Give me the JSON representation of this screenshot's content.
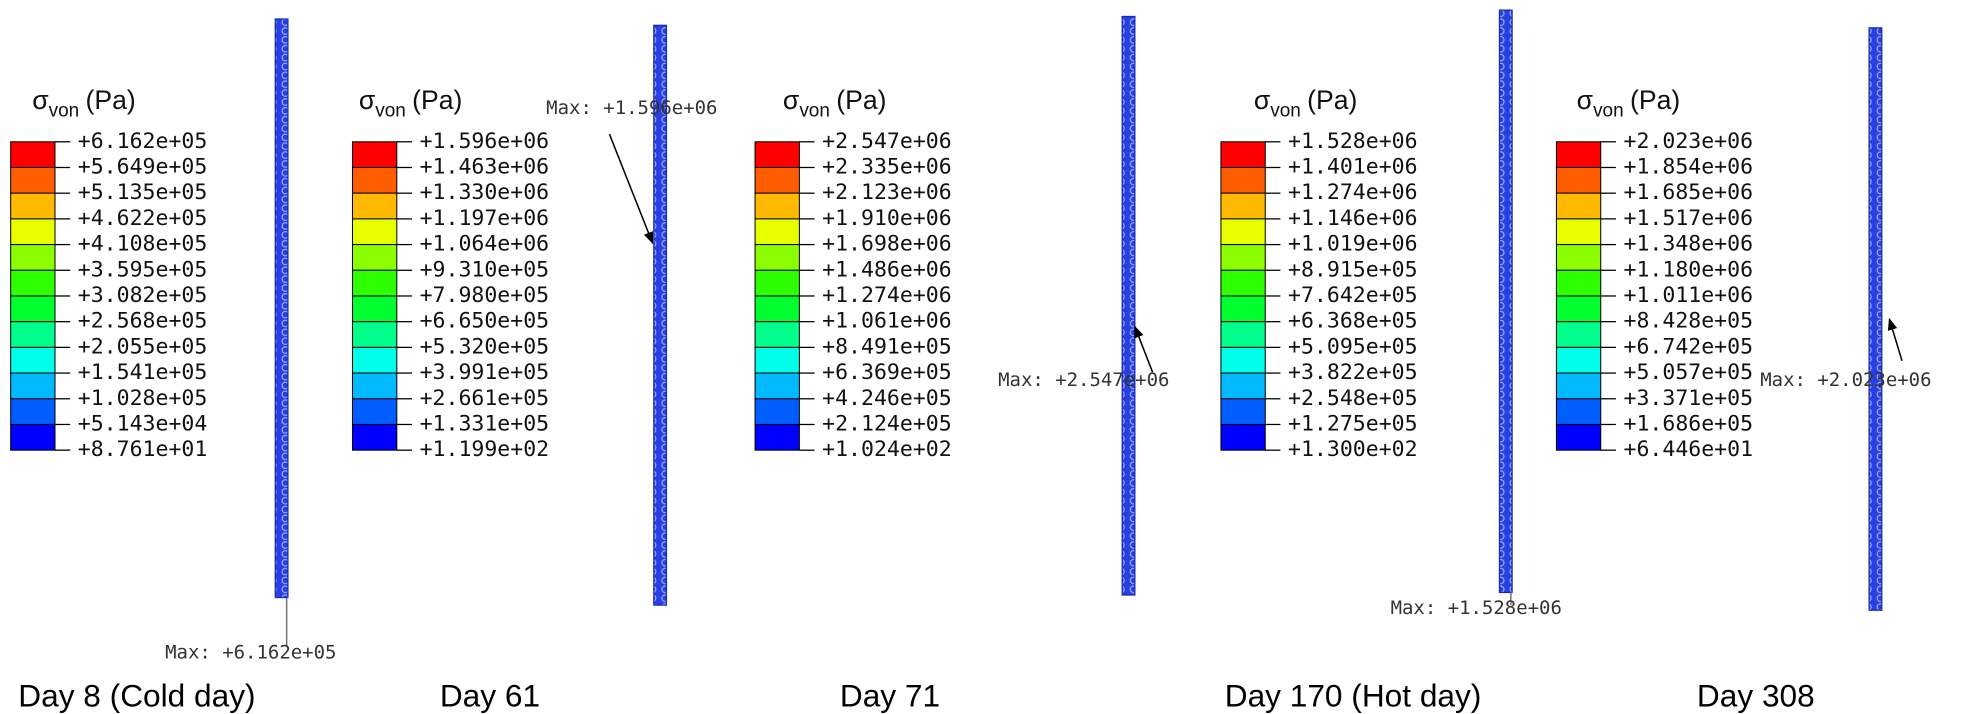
{
  "band_colors": [
    "#0000ff",
    "#005dff",
    "#00b9ff",
    "#00ffe8",
    "#00ff8b",
    "#00ff2e",
    "#2eff00",
    "#8bff00",
    "#e8ff00",
    "#ffb900",
    "#ff5d00",
    "#ff0000"
  ],
  "panels": [
    {
      "legend": {
        "symbol": "σ",
        "subscript": "von",
        "unit": "(Pa)",
        "labels": [
          "+6.162e+05",
          "+5.649e+05",
          "+5.135e+05",
          "+4.622e+05",
          "+4.108e+05",
          "+3.595e+05",
          "+3.082e+05",
          "+2.568e+05",
          "+2.055e+05",
          "+1.541e+05",
          "+1.028e+05",
          "+5.143e+04",
          "+8.761e+01"
        ]
      },
      "max_label": "Max: +6.162e+05",
      "caption": "Day 8 (Cold day)"
    },
    {
      "legend": {
        "symbol": "σ",
        "subscript": "von",
        "unit": "(Pa)",
        "labels": [
          "+1.596e+06",
          "+1.463e+06",
          "+1.330e+06",
          "+1.197e+06",
          "+1.064e+06",
          "+9.310e+05",
          "+7.980e+05",
          "+6.650e+05",
          "+5.320e+05",
          "+3.991e+05",
          "+2.661e+05",
          "+1.331e+05",
          "+1.199e+02"
        ]
      },
      "max_label": "Max: +1.596e+06",
      "caption": "Day 61"
    },
    {
      "legend": {
        "symbol": "σ",
        "subscript": "von",
        "unit": "(Pa)",
        "labels": [
          "+2.547e+06",
          "+2.335e+06",
          "+2.123e+06",
          "+1.910e+06",
          "+1.698e+06",
          "+1.486e+06",
          "+1.274e+06",
          "+1.061e+06",
          "+8.491e+05",
          "+6.369e+05",
          "+4.246e+05",
          "+2.124e+05",
          "+1.024e+02"
        ]
      },
      "max_label": "Max: +2.547e+06",
      "caption": "Day 71"
    },
    {
      "legend": {
        "symbol": "σ",
        "subscript": "von",
        "unit": "(Pa)",
        "labels": [
          "+1.528e+06",
          "+1.401e+06",
          "+1.274e+06",
          "+1.146e+06",
          "+1.019e+06",
          "+8.915e+05",
          "+7.642e+05",
          "+6.368e+05",
          "+5.095e+05",
          "+3.822e+05",
          "+2.548e+05",
          "+1.275e+05",
          "+1.300e+02"
        ]
      },
      "max_label": "Max: +1.528e+06",
      "caption": "Day 170 (Hot day)"
    },
    {
      "legend": {
        "symbol": "σ",
        "subscript": "von",
        "unit": "(Pa)",
        "labels": [
          "+2.023e+06",
          "+1.854e+06",
          "+1.685e+06",
          "+1.517e+06",
          "+1.348e+06",
          "+1.180e+06",
          "+1.011e+06",
          "+8.428e+05",
          "+6.742e+05",
          "+5.057e+05",
          "+3.371e+05",
          "+1.686e+05",
          "+6.446e+01"
        ]
      },
      "max_label": "Max: +2.023e+06",
      "caption": "Day 308"
    }
  ]
}
